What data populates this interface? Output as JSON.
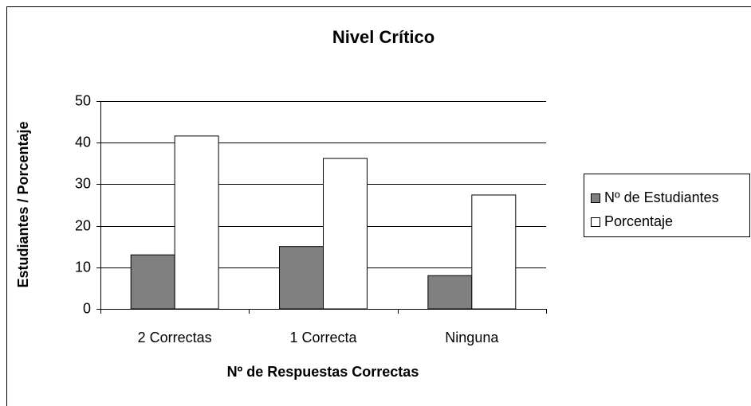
{
  "chart_data": {
    "type": "bar",
    "title": "Nivel Crítico",
    "x_label": "Nº de Respuestas Correctas",
    "y_label": "Estudiantes / Porcentaje",
    "categories": [
      "2 Correctas",
      "1 Correcta",
      "Ninguna"
    ],
    "series": [
      {
        "name": "Nº de Estudiantes",
        "color": "#808080",
        "values": [
          13,
          15,
          8
        ]
      },
      {
        "name": "Porcentaje",
        "color": "#ffffff",
        "values": [
          41.6,
          36.2,
          27.4
        ]
      }
    ],
    "ylim": [
      0,
      50
    ],
    "yticks": [
      0,
      10,
      20,
      30,
      40,
      50
    ],
    "grid": true,
    "legend": "right"
  }
}
